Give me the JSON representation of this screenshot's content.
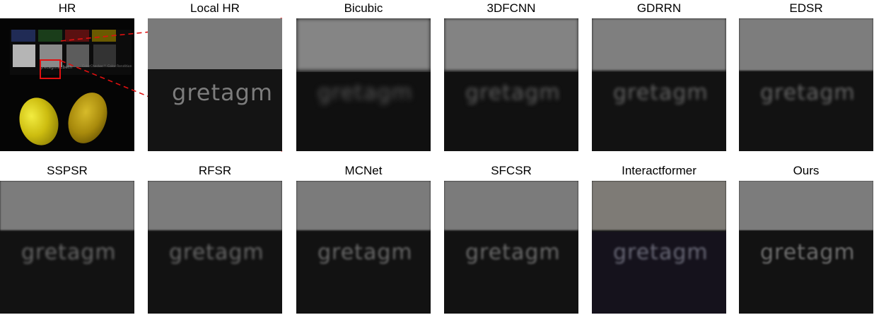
{
  "row1": {
    "labels": [
      "HR",
      "Local HR",
      "Bicubic",
      "3DFCNN",
      "GDRRN",
      "EDSR"
    ]
  },
  "row2": {
    "labels": [
      "SSPSR",
      "RFSR",
      "MCNet",
      "SFCSR",
      "Interactformer",
      "Ours"
    ]
  },
  "image_text": {
    "patch_text": "gretagm",
    "overview_brand": "gretagmacbeth",
    "overview_brand_small": "ColorChecker™ Color Rendition"
  },
  "colors": {
    "zoom_box": "#e01010",
    "connector": "#e01010"
  }
}
